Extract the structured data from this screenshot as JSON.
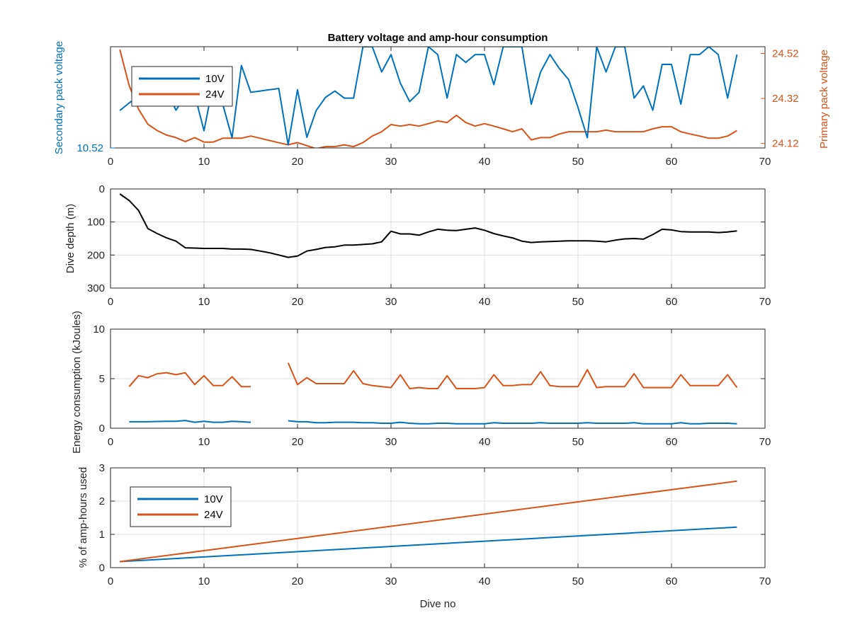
{
  "colors": {
    "blue": "#0072BD",
    "orange": "#D95319",
    "black": "#000000",
    "grid": "#dfdfdf",
    "axis": "#262626"
  },
  "chart_data": [
    {
      "type": "line",
      "title": "Battery voltage and amp-hour consumption",
      "xlabel": "",
      "xlim": [
        0,
        70
      ],
      "xticks": [
        "0",
        "10",
        "20",
        "30",
        "40",
        "50",
        "60",
        "70"
      ],
      "ylabel_left": "Secondary pack voltage",
      "ylabel_right": "Primary pack voltage",
      "ylim_left": [
        10.52,
        10.56
      ],
      "yticks_left": [
        "10.52"
      ],
      "ylim_right": [
        24.1,
        24.55
      ],
      "yticks_right": [
        "24.12",
        "24.32",
        "24.52"
      ],
      "grid": false,
      "legend": {
        "position": "top-left",
        "entries": [
          "10V",
          "24V"
        ]
      },
      "series": [
        {
          "name": "10V",
          "axis": "left",
          "x": [
            1,
            2,
            3,
            4,
            5,
            6,
            7,
            8,
            9,
            10,
            11,
            12,
            13,
            14,
            15,
            16,
            17,
            18,
            19,
            20,
            21,
            22,
            23,
            24,
            25,
            26,
            27,
            28,
            29,
            30,
            31,
            32,
            33,
            34,
            35,
            36,
            37,
            38,
            39,
            40,
            41,
            42,
            43,
            44,
            45,
            46,
            47,
            48,
            49,
            50,
            51,
            52,
            53,
            54,
            55,
            56,
            57,
            58,
            59,
            60,
            61,
            62,
            63,
            64,
            65,
            66,
            67
          ],
          "y": [
            10.5348,
            10.5378,
            10.5405,
            10.5409,
            10.5397,
            10.5425,
            10.5349,
            10.5405,
            10.5412,
            10.5268,
            10.5456,
            10.5373,
            10.524,
            10.5526,
            10.542,
            10.5425,
            10.543,
            10.5435,
            10.5212,
            10.543,
            10.5242,
            10.5348,
            10.54,
            10.5425,
            10.5397,
            10.5397,
            10.56,
            10.56,
            10.55,
            10.5569,
            10.5456,
            10.5383,
            10.542,
            10.56,
            10.5569,
            10.5397,
            10.5569,
            10.5538,
            10.5569,
            10.5569,
            10.545,
            10.56,
            10.56,
            10.56,
            10.5373,
            10.55,
            10.5569,
            10.5514,
            10.547,
            10.536,
            10.524,
            10.56,
            10.55,
            10.56,
            10.56,
            10.5397,
            10.5445,
            10.5349,
            10.553,
            10.553,
            10.5373,
            10.5569,
            10.5569,
            10.56,
            10.5569,
            10.5397,
            10.5569
          ]
        },
        {
          "name": "24V",
          "axis": "right",
          "x": [
            1,
            2,
            3,
            4,
            5,
            6,
            7,
            8,
            9,
            10,
            11,
            12,
            13,
            14,
            15,
            16,
            17,
            18,
            19,
            20,
            21,
            22,
            23,
            24,
            25,
            26,
            27,
            28,
            29,
            30,
            31,
            32,
            33,
            34,
            35,
            36,
            37,
            38,
            39,
            40,
            41,
            42,
            43,
            44,
            45,
            46,
            47,
            48,
            49,
            50,
            51,
            52,
            53,
            54,
            55,
            56,
            57,
            58,
            59,
            60,
            61,
            62,
            63,
            64,
            65,
            66,
            67
          ],
          "y": [
            24.537,
            24.377,
            24.272,
            24.205,
            24.177,
            24.157,
            24.146,
            24.128,
            24.146,
            24.126,
            24.126,
            24.143,
            24.143,
            24.143,
            24.153,
            24.143,
            24.133,
            24.123,
            24.114,
            24.124,
            24.11,
            24.097,
            24.106,
            24.106,
            24.114,
            24.106,
            24.124,
            24.153,
            24.172,
            24.204,
            24.197,
            24.204,
            24.197,
            24.208,
            24.22,
            24.213,
            24.245,
            24.213,
            24.197,
            24.208,
            24.197,
            24.185,
            24.172,
            24.185,
            24.136,
            24.146,
            24.146,
            24.162,
            24.172,
            24.172,
            24.172,
            24.172,
            24.179,
            24.172,
            24.172,
            24.172,
            24.172,
            24.185,
            24.194,
            24.194,
            24.172,
            24.162,
            24.153,
            24.143,
            24.143,
            24.153,
            24.177
          ]
        }
      ]
    },
    {
      "type": "line",
      "title": "",
      "xlabel": "",
      "ylabel": "Dive depth (m)",
      "xlim": [
        0,
        70
      ],
      "xticks": [
        "0",
        "10",
        "20",
        "30",
        "40",
        "50",
        "60",
        "70"
      ],
      "ylim": [
        0,
        300
      ],
      "y_reversed": true,
      "yticks": [
        "0",
        "100",
        "200",
        "300"
      ],
      "grid": true,
      "series": [
        {
          "x": [
            1,
            2,
            3,
            4,
            5,
            6,
            7,
            8,
            9,
            10,
            11,
            12,
            13,
            14,
            15,
            16,
            17,
            18,
            19,
            20,
            21,
            22,
            23,
            24,
            25,
            26,
            27,
            28,
            29,
            30,
            31,
            32,
            33,
            34,
            35,
            36,
            37,
            38,
            39,
            40,
            41,
            42,
            43,
            44,
            45,
            46,
            47,
            48,
            49,
            50,
            51,
            52,
            53,
            54,
            55,
            56,
            57,
            58,
            59,
            60,
            61,
            62,
            63,
            64,
            65,
            66,
            67
          ],
          "y": [
            15,
            35,
            65,
            120,
            135,
            148,
            158,
            178,
            179,
            180,
            180,
            180,
            182,
            182,
            183,
            188,
            193,
            200,
            207,
            203,
            188,
            183,
            177,
            175,
            170,
            170,
            168,
            166,
            160,
            128,
            136,
            136,
            140,
            130,
            122,
            125,
            126,
            122,
            118,
            125,
            135,
            142,
            148,
            158,
            162,
            160,
            159,
            158,
            157,
            157,
            157,
            158,
            160,
            155,
            151,
            150,
            152,
            138,
            122,
            124,
            129,
            130,
            130,
            130,
            132,
            130,
            127
          ]
        }
      ]
    },
    {
      "type": "line",
      "title": "",
      "xlabel": "",
      "ylabel": "Energy consumption (kJoules)",
      "xlim": [
        0,
        70
      ],
      "xticks": [
        "0",
        "10",
        "20",
        "30",
        "40",
        "50",
        "60",
        "70"
      ],
      "ylim": [
        0,
        10
      ],
      "yticks": [
        "0",
        "5",
        "10"
      ],
      "grid": true,
      "series": [
        {
          "name": "24V",
          "segments": [
            {
              "x": [
                2,
                3,
                4,
                5,
                6,
                7,
                8,
                9,
                10,
                11,
                12,
                13,
                14,
                15
              ],
              "y": [
                4.2,
                5.3,
                5.1,
                5.5,
                5.6,
                5.4,
                5.6,
                4.4,
                5.3,
                4.3,
                4.3,
                5.2,
                4.2,
                4.2
              ]
            },
            {
              "x": [
                19,
                20,
                21,
                22,
                23,
                24,
                25,
                26,
                27,
                28,
                29,
                30,
                31,
                32,
                33,
                34,
                35,
                36,
                37,
                38,
                39,
                40,
                41,
                42,
                43,
                44,
                45,
                46,
                47,
                48,
                49,
                50,
                51,
                52,
                53,
                54,
                55,
                56,
                57,
                58,
                59,
                60,
                61,
                62,
                63,
                64,
                65,
                66,
                67
              ],
              "y": [
                6.6,
                4.4,
                5.1,
                4.5,
                4.5,
                4.5,
                4.5,
                5.8,
                4.5,
                4.3,
                4.2,
                4.1,
                5.4,
                4.0,
                4.1,
                4.0,
                4.0,
                5.3,
                4.0,
                4.0,
                4.0,
                4.1,
                5.4,
                4.3,
                4.3,
                4.4,
                4.4,
                5.7,
                4.3,
                4.2,
                4.2,
                4.2,
                5.9,
                4.1,
                4.2,
                4.2,
                4.2,
                5.5,
                4.1,
                4.1,
                4.1,
                4.1,
                5.4,
                4.3,
                4.3,
                4.3,
                4.3,
                5.4,
                4.1
              ]
            }
          ]
        },
        {
          "name": "10V",
          "segments": [
            {
              "x": [
                2,
                3,
                4,
                5,
                6,
                7,
                8,
                9,
                10,
                11,
                12,
                13,
                14,
                15
              ],
              "y": [
                0.65,
                0.65,
                0.65,
                0.68,
                0.7,
                0.7,
                0.78,
                0.6,
                0.7,
                0.6,
                0.6,
                0.7,
                0.65,
                0.6
              ]
            },
            {
              "x": [
                19,
                20,
                21,
                22,
                23,
                24,
                25,
                26,
                27,
                28,
                29,
                30,
                31,
                32,
                33,
                34,
                35,
                36,
                37,
                38,
                39,
                40,
                41,
                42,
                43,
                44,
                45,
                46,
                47,
                48,
                49,
                50,
                51,
                52,
                53,
                54,
                55,
                56,
                57,
                58,
                59,
                60,
                61,
                62,
                63,
                64,
                65,
                66,
                67
              ],
              "y": [
                0.75,
                0.65,
                0.65,
                0.55,
                0.55,
                0.6,
                0.6,
                0.6,
                0.55,
                0.55,
                0.5,
                0.5,
                0.6,
                0.5,
                0.45,
                0.45,
                0.5,
                0.5,
                0.45,
                0.45,
                0.45,
                0.45,
                0.55,
                0.5,
                0.5,
                0.5,
                0.5,
                0.55,
                0.5,
                0.5,
                0.5,
                0.5,
                0.55,
                0.5,
                0.5,
                0.5,
                0.5,
                0.55,
                0.45,
                0.45,
                0.45,
                0.45,
                0.55,
                0.45,
                0.45,
                0.5,
                0.5,
                0.5,
                0.45
              ]
            }
          ]
        }
      ]
    },
    {
      "type": "line",
      "title": "",
      "xlabel": "Dive no",
      "ylabel": "% of amp-hours used",
      "xlim": [
        0,
        70
      ],
      "xticks": [
        "0",
        "10",
        "20",
        "30",
        "40",
        "50",
        "60",
        "70"
      ],
      "ylim": [
        0,
        3
      ],
      "yticks": [
        "0",
        "1",
        "2",
        "3"
      ],
      "grid": true,
      "legend": {
        "position": "top-left",
        "entries": [
          "10V",
          "24V"
        ]
      },
      "series": [
        {
          "name": "10V",
          "x": [
            1,
            67
          ],
          "y": [
            0.18,
            1.22
          ]
        },
        {
          "name": "24V",
          "x": [
            1,
            67
          ],
          "y": [
            0.18,
            2.6
          ]
        }
      ]
    }
  ]
}
